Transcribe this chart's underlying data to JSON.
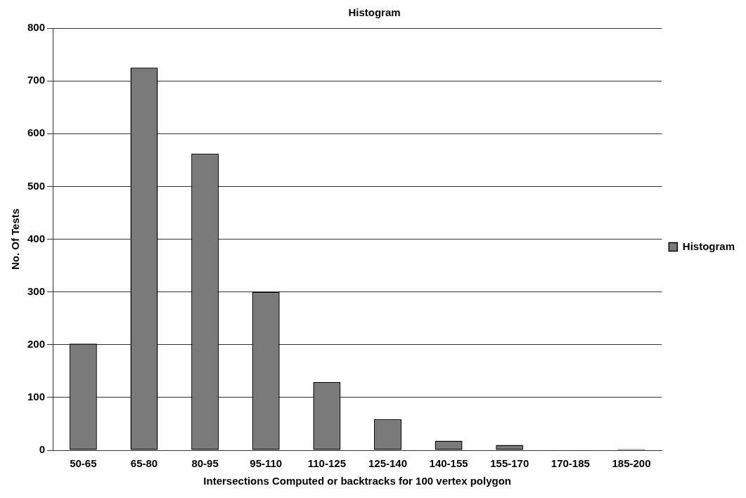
{
  "chart_data": {
    "type": "bar",
    "title": "Histogram",
    "xlabel": "Intersections Computed or backtracks for 100 vertex polygon",
    "ylabel": "No. Of Tests",
    "categories": [
      "50-65",
      "65-80",
      "80-95",
      "95-110",
      "110-125",
      "125-140",
      "140-155",
      "155-170",
      "170-185",
      "185-200"
    ],
    "series": [
      {
        "name": "Histogram",
        "color": "#7a7a7a",
        "values": [
          202,
          725,
          562,
          300,
          129,
          59,
          18,
          10,
          0,
          2
        ]
      }
    ],
    "ylim": [
      0,
      800
    ],
    "yticks": [
      0,
      100,
      200,
      300,
      400,
      500,
      600,
      700,
      800
    ],
    "grid": "y",
    "legend": "right"
  }
}
